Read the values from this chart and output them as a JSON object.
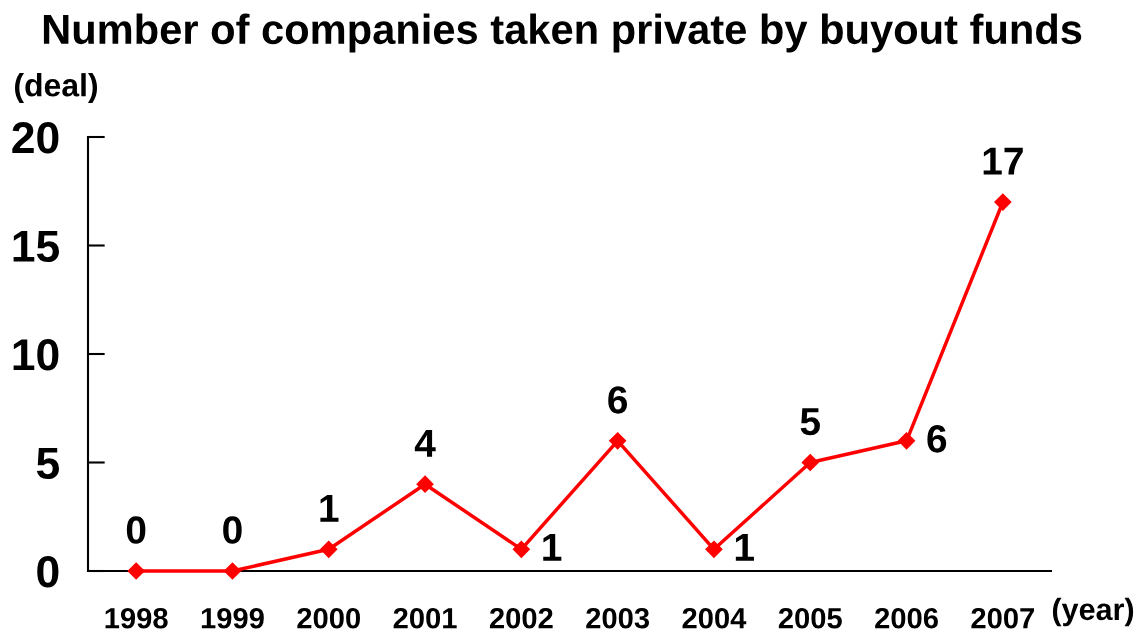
{
  "chart_data": {
    "type": "line",
    "title": "Number of companies taken private by buyout funds",
    "ylabel": "(deal)",
    "xlabel": "(year)",
    "categories": [
      "1998",
      "1999",
      "2000",
      "2001",
      "2002",
      "2003",
      "2004",
      "2005",
      "2006",
      "2007"
    ],
    "series": [
      {
        "color": "#ff0000",
        "values": [
          0,
          0,
          1,
          4,
          1,
          6,
          1,
          5,
          6,
          17
        ]
      }
    ],
    "ylim": [
      0,
      20
    ],
    "yticks": [
      0,
      5,
      10,
      15,
      20
    ],
    "marker": "diamond",
    "line_style": "solid",
    "data_labels": true
  }
}
